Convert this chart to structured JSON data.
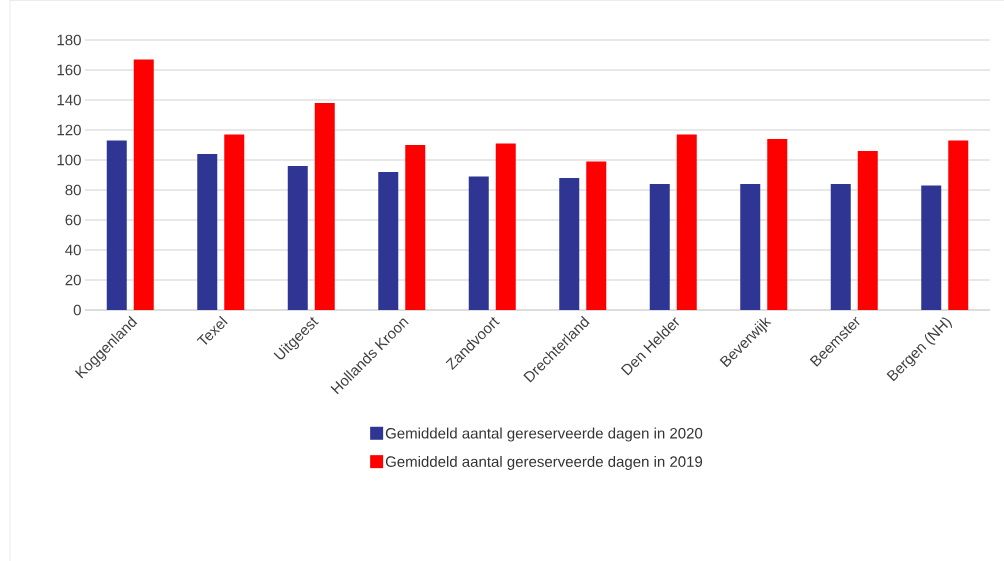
{
  "chart_data": {
    "type": "bar",
    "categories": [
      "Koggenland",
      "Texel",
      "Uitgeest",
      "Hollands Kroon",
      "Zandvoort",
      "Drechterland",
      "Den Helder",
      "Beverwijk",
      "Beemster",
      "Bergen (NH)"
    ],
    "series": [
      {
        "name": "Gemiddeld aantal gereserveerde dagen in 2020",
        "color": "#2e3592",
        "values": [
          113,
          104,
          96,
          92,
          89,
          88,
          84,
          84,
          84,
          83
        ]
      },
      {
        "name": "Gemiddeld aantal gereserveerde dagen in 2019",
        "color": "#ff0000",
        "values": [
          167,
          117,
          138,
          110,
          111,
          99,
          117,
          114,
          106,
          113
        ]
      }
    ],
    "ylim": [
      0,
      180
    ],
    "yticks": [
      0,
      20,
      40,
      60,
      80,
      100,
      120,
      140,
      160,
      180
    ],
    "grid": "y",
    "legend": "bottom"
  }
}
